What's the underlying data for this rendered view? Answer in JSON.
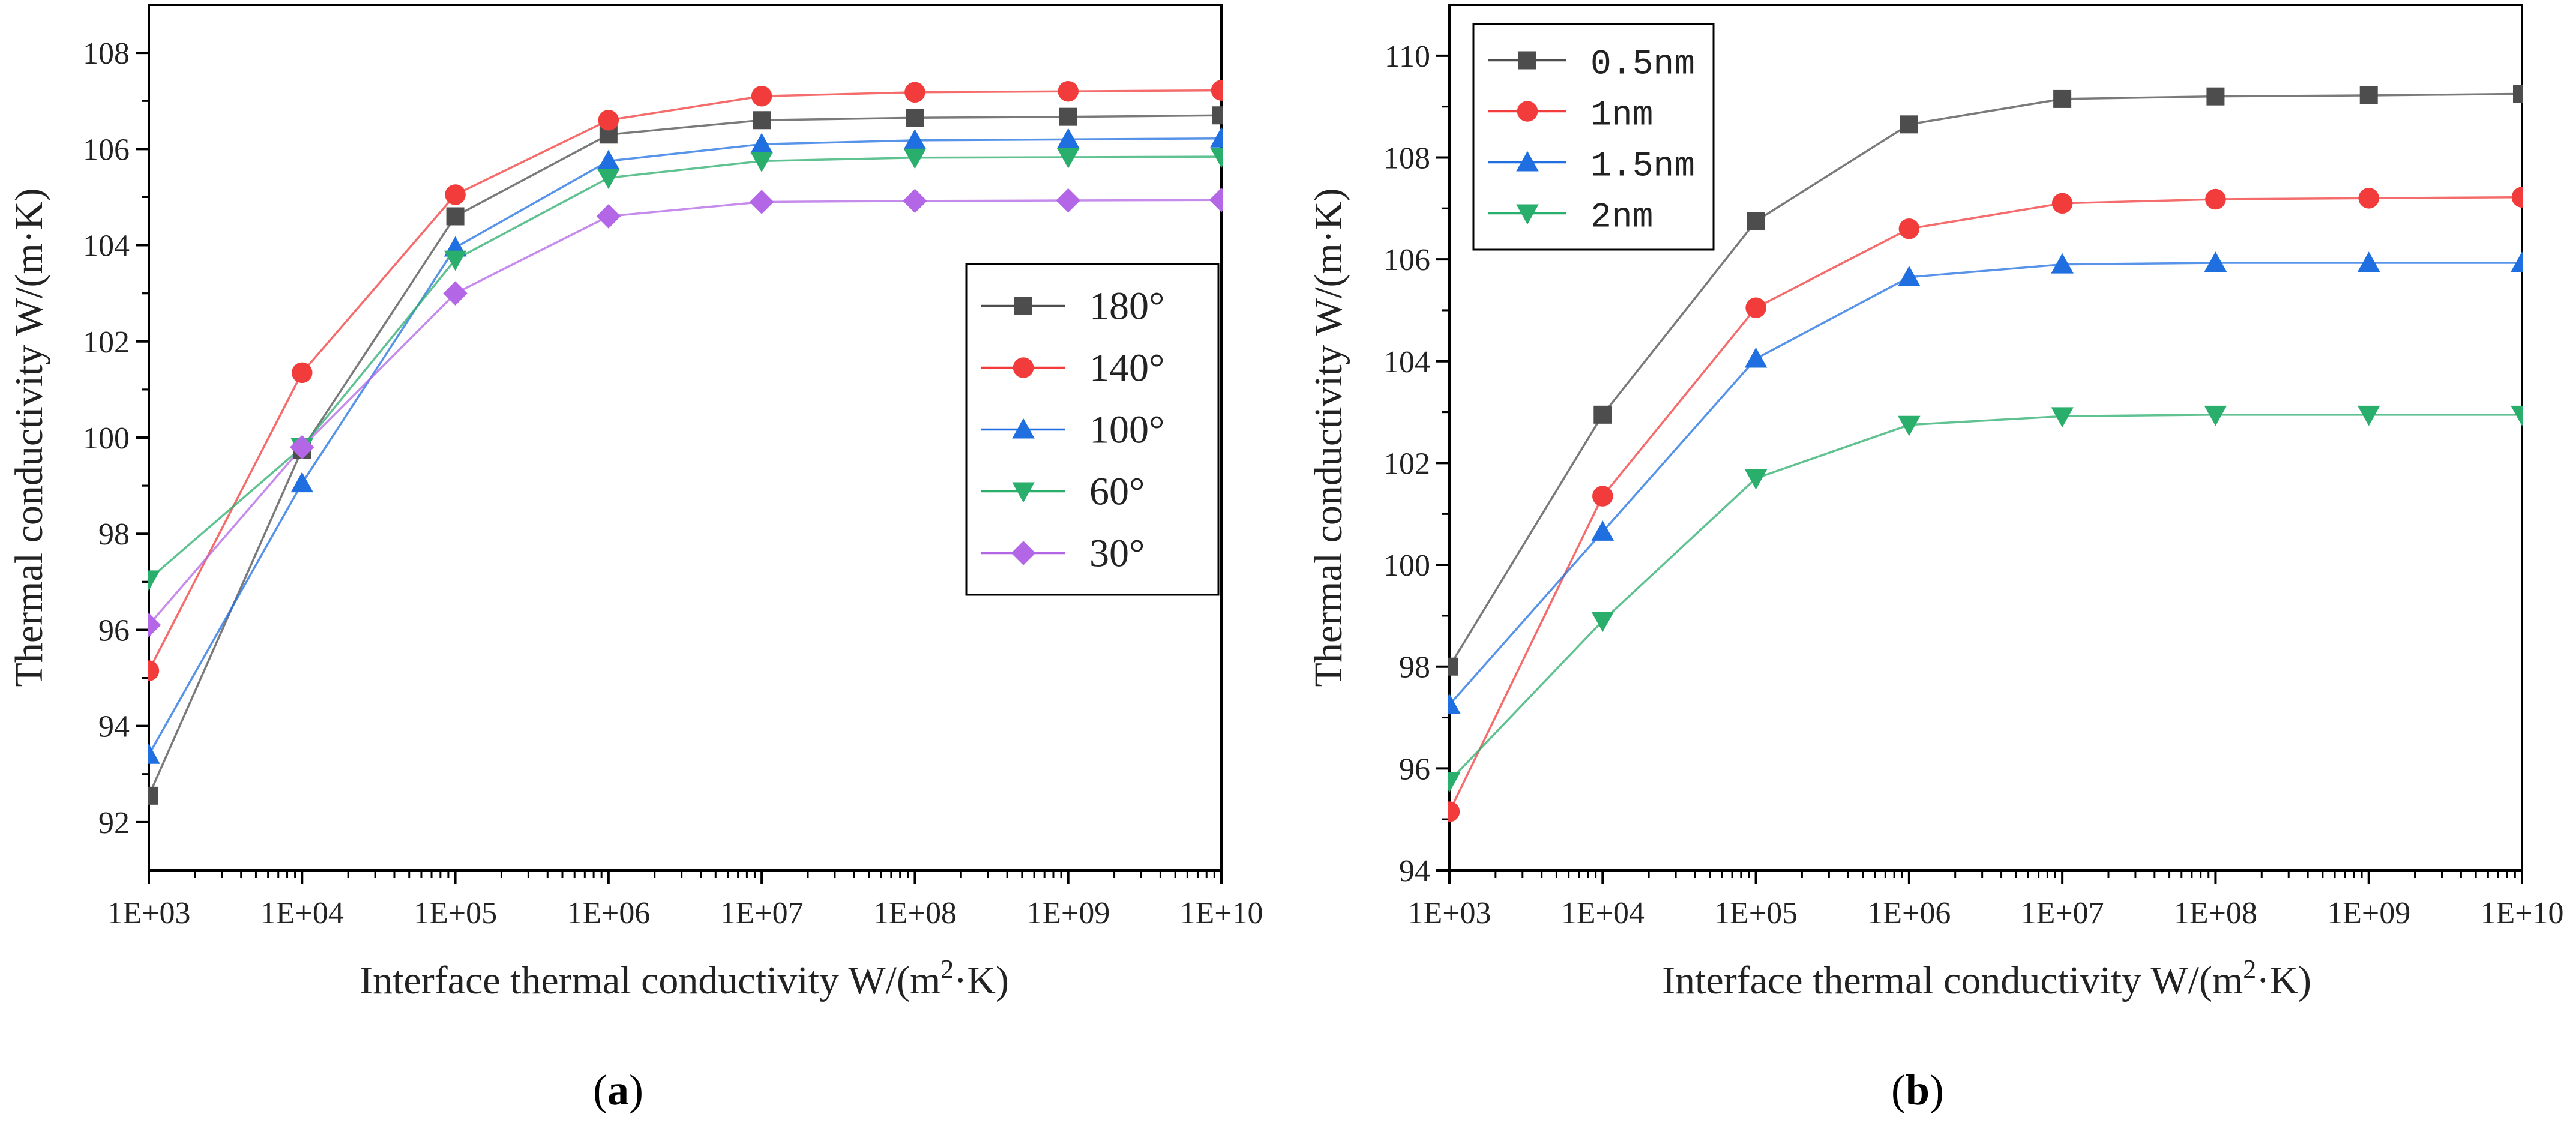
{
  "chart_data": [
    {
      "type": "line",
      "panel": "a",
      "panel_label_prefix": "(",
      "panel_label_letter": "a",
      "panel_label_suffix": ")",
      "xlabel": "Interface thermal conductivity  W/(m",
      "xlabel_sup": "2",
      "xlabel_tail": "·K)",
      "ylabel": "Thermal conductivity  W/(m·K)",
      "x_tick_labels": [
        "1E+03",
        "1E+04",
        "1E+05",
        "1E+06",
        "1E+07",
        "1E+08",
        "1E+09",
        "1E+10"
      ],
      "x": [
        3,
        4,
        5,
        6,
        7,
        8,
        9,
        10
      ],
      "xlim": [
        3,
        10
      ],
      "ylim": [
        91,
        109
      ],
      "yticks": [
        92,
        94,
        96,
        98,
        100,
        102,
        104,
        106,
        108
      ],
      "y_tick_labels": [
        "92",
        "94",
        "96",
        "98",
        "100",
        "102",
        "104",
        "106",
        "108"
      ],
      "legend_position": "center-right",
      "series": [
        {
          "name": "180°",
          "color": "#4d4d4d",
          "marker": "square",
          "values": [
            92.55,
            99.75,
            104.6,
            106.3,
            106.6,
            106.65,
            106.67,
            106.7
          ]
        },
        {
          "name": "140°",
          "color": "#f23b3b",
          "marker": "circle",
          "values": [
            95.15,
            101.35,
            105.05,
            106.6,
            107.1,
            107.18,
            107.2,
            107.22
          ]
        },
        {
          "name": "100°",
          "color": "#1f6fe0",
          "marker": "triangle-up",
          "values": [
            93.4,
            99.05,
            103.95,
            105.75,
            106.1,
            106.18,
            106.2,
            106.22
          ]
        },
        {
          "name": "60°",
          "color": "#2aae6b",
          "marker": "triangle-down",
          "values": [
            97.05,
            99.8,
            103.7,
            105.4,
            105.75,
            105.82,
            105.83,
            105.84
          ]
        },
        {
          "name": "30°",
          "color": "#b366e6",
          "marker": "diamond",
          "values": [
            96.1,
            99.8,
            103.0,
            104.6,
            104.9,
            104.92,
            104.93,
            104.94
          ]
        }
      ]
    },
    {
      "type": "line",
      "panel": "b",
      "panel_label_prefix": "(",
      "panel_label_letter": "b",
      "panel_label_suffix": ")",
      "xlabel": "Interface thermal conductivity  W/(m",
      "xlabel_sup": "2",
      "xlabel_tail": "·K)",
      "ylabel": "Thermal conductivity  W/(m·K)",
      "x_tick_labels": [
        "1E+03",
        "1E+04",
        "1E+05",
        "1E+06",
        "1E+07",
        "1E+08",
        "1E+09",
        "1E+10"
      ],
      "x": [
        3,
        4,
        5,
        6,
        7,
        8,
        9,
        10
      ],
      "xlim": [
        3,
        10
      ],
      "ylim": [
        94,
        111
      ],
      "yticks": [
        94,
        96,
        98,
        100,
        102,
        104,
        106,
        108,
        110
      ],
      "y_tick_labels": [
        "94",
        "96",
        "98",
        "100",
        "102",
        "104",
        "106",
        "108",
        "110"
      ],
      "legend_position": "top-left",
      "series": [
        {
          "name": "0.5nm",
          "color": "#4d4d4d",
          "marker": "square",
          "values": [
            98.0,
            102.95,
            106.75,
            108.65,
            109.15,
            109.2,
            109.22,
            109.25
          ]
        },
        {
          "name": "1nm",
          "color": "#f23b3b",
          "marker": "circle",
          "values": [
            95.15,
            101.35,
            105.05,
            106.6,
            107.1,
            107.18,
            107.2,
            107.22
          ]
        },
        {
          "name": "1.5nm",
          "color": "#1f6fe0",
          "marker": "triangle-up",
          "values": [
            97.25,
            100.65,
            104.05,
            105.65,
            105.9,
            105.93,
            105.93,
            105.93
          ]
        },
        {
          "name": "2nm",
          "color": "#2aae6b",
          "marker": "triangle-down",
          "values": [
            95.75,
            98.9,
            101.7,
            102.75,
            102.92,
            102.95,
            102.95,
            102.95
          ]
        }
      ]
    }
  ]
}
